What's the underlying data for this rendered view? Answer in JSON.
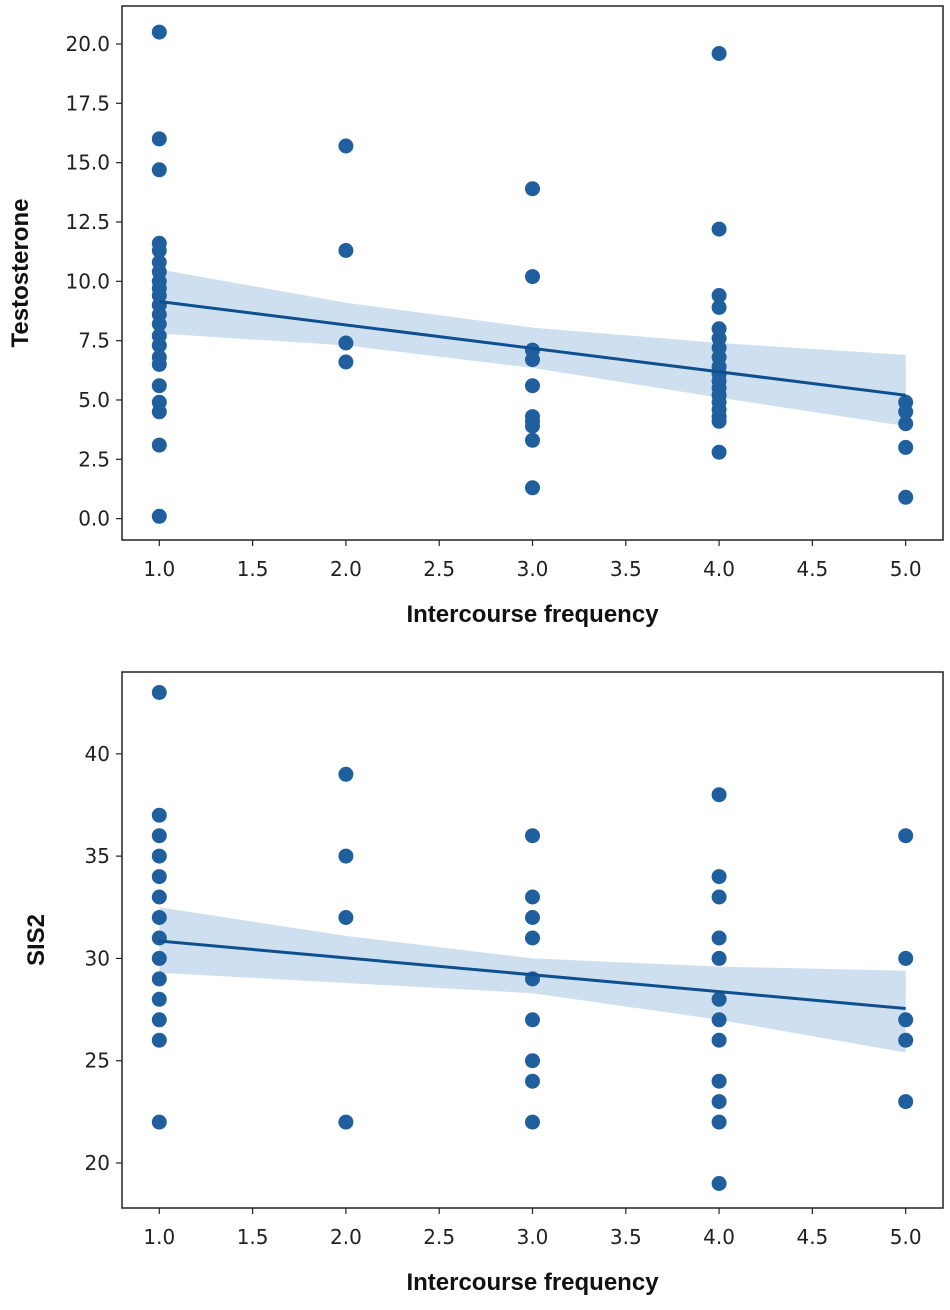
{
  "colors": {
    "point": "#1f5f9e",
    "line": "#0d4f8f",
    "band": "#c5d9ec",
    "frame": "#222222"
  },
  "chart_data": [
    {
      "type": "scatter",
      "xlabel": "Intercourse frequency",
      "ylabel": "Testosterone",
      "xlim": [
        0.8,
        5.2
      ],
      "ylim": [
        -0.9,
        21.6
      ],
      "xticks": [
        "1.0",
        "1.5",
        "2.0",
        "2.5",
        "3.0",
        "3.5",
        "4.0",
        "4.5",
        "5.0"
      ],
      "yticks": [
        "0.0",
        "2.5",
        "5.0",
        "7.5",
        "10.0",
        "12.5",
        "15.0",
        "17.5",
        "20.0"
      ],
      "points": [
        [
          1,
          20.5
        ],
        [
          1,
          16.0
        ],
        [
          1,
          14.7
        ],
        [
          1,
          11.6
        ],
        [
          1,
          11.3
        ],
        [
          1,
          10.8
        ],
        [
          1,
          10.4
        ],
        [
          1,
          10.0
        ],
        [
          1,
          9.7
        ],
        [
          1,
          9.4
        ],
        [
          1,
          9.0
        ],
        [
          1,
          8.6
        ],
        [
          1,
          8.2
        ],
        [
          1,
          7.7
        ],
        [
          1,
          7.3
        ],
        [
          1,
          6.8
        ],
        [
          1,
          6.5
        ],
        [
          1,
          5.6
        ],
        [
          1,
          4.9
        ],
        [
          1,
          4.5
        ],
        [
          1,
          3.1
        ],
        [
          1,
          0.1
        ],
        [
          2,
          15.7
        ],
        [
          2,
          11.3
        ],
        [
          2,
          7.4
        ],
        [
          2,
          6.6
        ],
        [
          3,
          13.9
        ],
        [
          3,
          10.2
        ],
        [
          3,
          7.1
        ],
        [
          3,
          6.7
        ],
        [
          3,
          5.6
        ],
        [
          3,
          4.3
        ],
        [
          3,
          4.1
        ],
        [
          3,
          3.9
        ],
        [
          3,
          3.3
        ],
        [
          3,
          1.3
        ],
        [
          4,
          19.6
        ],
        [
          4,
          12.2
        ],
        [
          4,
          9.4
        ],
        [
          4,
          8.9
        ],
        [
          4,
          8.0
        ],
        [
          4,
          7.6
        ],
        [
          4,
          7.2
        ],
        [
          4,
          6.8
        ],
        [
          4,
          6.4
        ],
        [
          4,
          6.1
        ],
        [
          4,
          5.8
        ],
        [
          4,
          5.5
        ],
        [
          4,
          5.2
        ],
        [
          4,
          4.9
        ],
        [
          4,
          4.6
        ],
        [
          4,
          4.3
        ],
        [
          4,
          4.1
        ],
        [
          4,
          2.8
        ],
        [
          5,
          4.9
        ],
        [
          5,
          4.5
        ],
        [
          5,
          4.0
        ],
        [
          5,
          3.0
        ],
        [
          5,
          0.9
        ]
      ],
      "regression": {
        "x": [
          1,
          5
        ],
        "y": [
          9.15,
          5.2
        ]
      },
      "ci_band": {
        "x": [
          1,
          2,
          3,
          4,
          5
        ],
        "upper": [
          10.5,
          9.1,
          8.05,
          7.4,
          6.9
        ],
        "lower": [
          7.8,
          7.3,
          6.35,
          5.1,
          3.9
        ]
      }
    },
    {
      "type": "scatter",
      "xlabel": "Intercourse frequency",
      "ylabel": "SIS2",
      "xlim": [
        0.8,
        5.2
      ],
      "ylim": [
        17.8,
        44.0
      ],
      "xticks": [
        "1.0",
        "1.5",
        "2.0",
        "2.5",
        "3.0",
        "3.5",
        "4.0",
        "4.5",
        "5.0"
      ],
      "yticks": [
        "20",
        "25",
        "30",
        "35",
        "40"
      ],
      "points": [
        [
          1,
          43
        ],
        [
          1,
          37
        ],
        [
          1,
          36
        ],
        [
          1,
          35
        ],
        [
          1,
          34
        ],
        [
          1,
          33
        ],
        [
          1,
          32
        ],
        [
          1,
          31
        ],
        [
          1,
          30
        ],
        [
          1,
          29
        ],
        [
          1,
          28
        ],
        [
          1,
          27
        ],
        [
          1,
          26
        ],
        [
          1,
          22
        ],
        [
          2,
          39
        ],
        [
          2,
          35
        ],
        [
          2,
          32
        ],
        [
          2,
          22
        ],
        [
          3,
          36
        ],
        [
          3,
          33
        ],
        [
          3,
          32
        ],
        [
          3,
          31
        ],
        [
          3,
          29
        ],
        [
          3,
          27
        ],
        [
          3,
          25
        ],
        [
          3,
          24
        ],
        [
          3,
          22
        ],
        [
          4,
          38
        ],
        [
          4,
          34
        ],
        [
          4,
          33
        ],
        [
          4,
          31
        ],
        [
          4,
          30
        ],
        [
          4,
          28
        ],
        [
          4,
          27
        ],
        [
          4,
          26
        ],
        [
          4,
          24
        ],
        [
          4,
          23
        ],
        [
          4,
          22
        ],
        [
          4,
          19
        ],
        [
          5,
          36
        ],
        [
          5,
          30
        ],
        [
          5,
          27
        ],
        [
          5,
          26
        ],
        [
          5,
          23
        ]
      ],
      "regression": {
        "x": [
          1,
          5
        ],
        "y": [
          30.85,
          27.55
        ]
      },
      "ci_band": {
        "x": [
          1,
          2,
          3,
          4,
          5
        ],
        "upper": [
          32.5,
          31.1,
          30.0,
          29.6,
          29.4
        ],
        "lower": [
          29.3,
          28.8,
          28.3,
          27.0,
          25.4
        ]
      }
    }
  ]
}
